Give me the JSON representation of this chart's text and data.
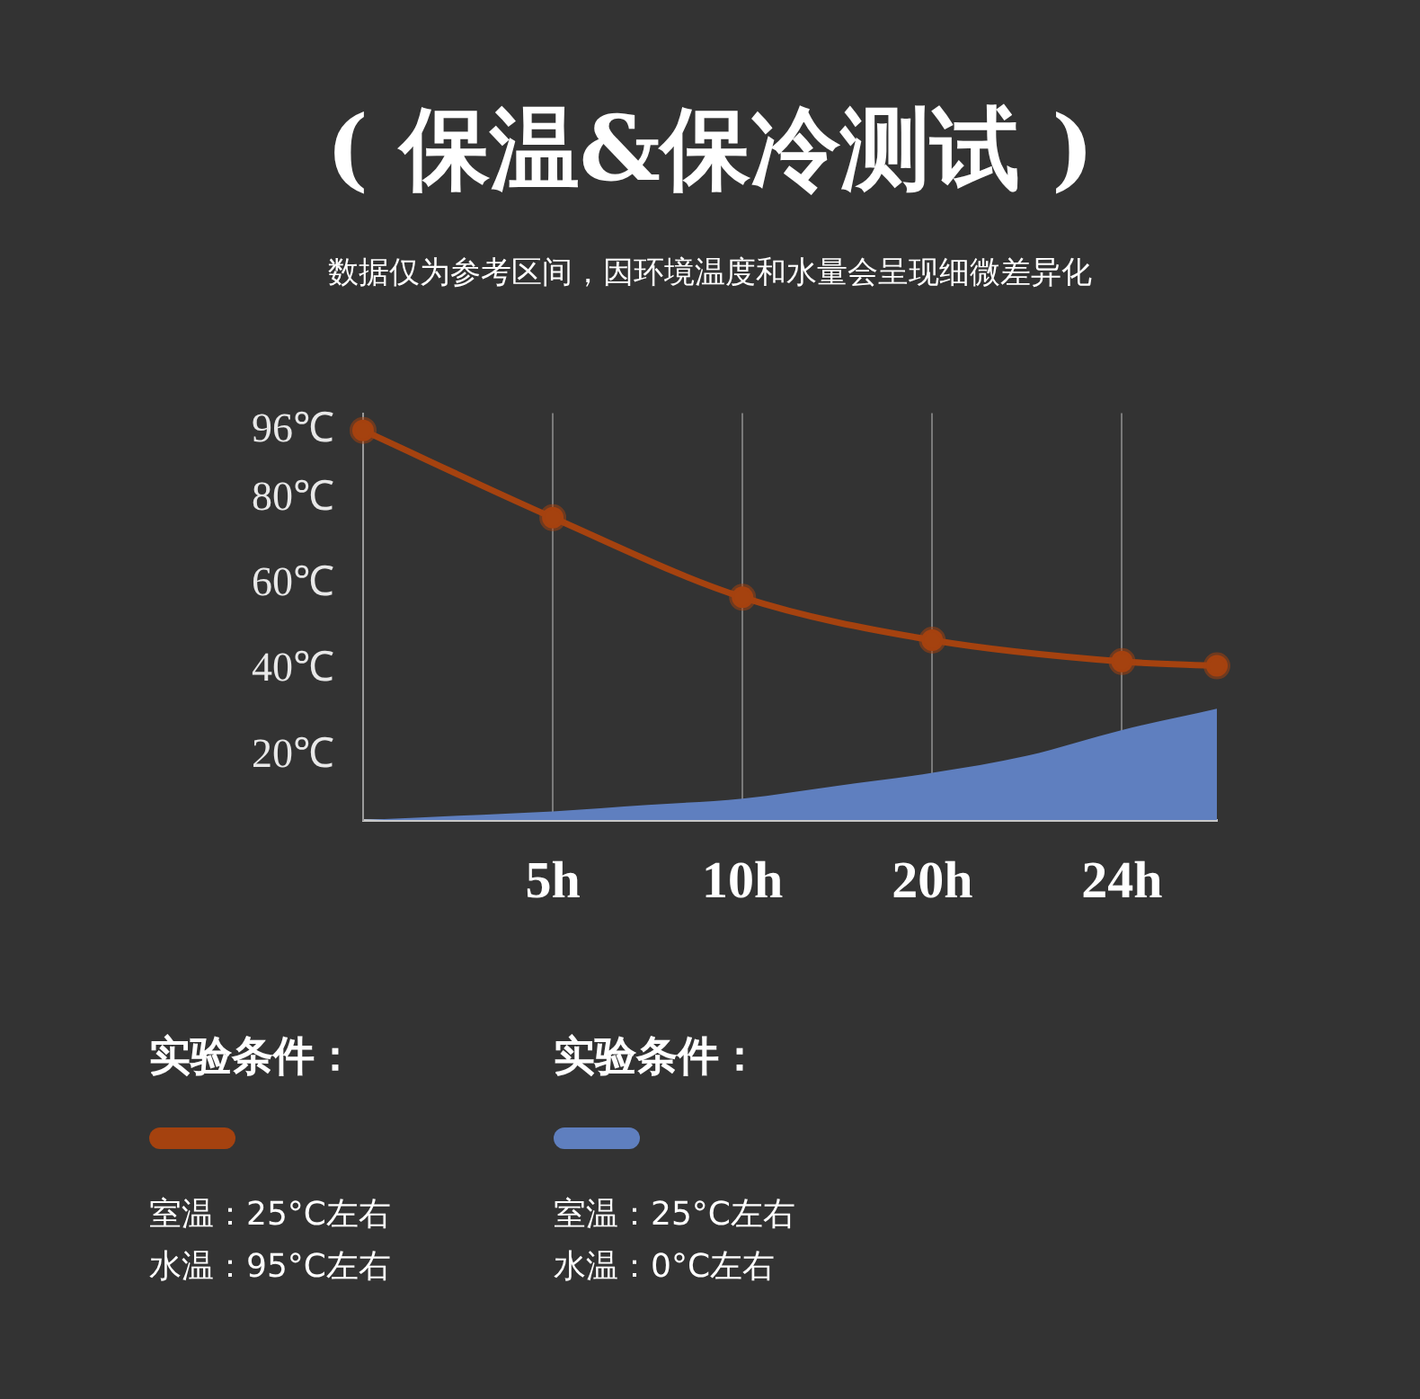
{
  "chart_data": {
    "type": "line",
    "title": "( 保温&保冷测试 )",
    "subtitle": "数据仅为参考区间，因环境温度和水量会呈现细微差异化",
    "categories": [
      null,
      null,
      "5h",
      null,
      "10h",
      null,
      "20h",
      null,
      "24h",
      null
    ],
    "series": [
      {
        "color": "#a5420f",
        "marker": "circle",
        "values": [
          96,
          null,
          75.6,
          null,
          57,
          null,
          47,
          null,
          42,
          41
        ]
      },
      {
        "type": "area",
        "color": "#5f7fbf",
        "values": [
          5,
          6,
          7,
          8.5,
          10,
          13,
          16,
          20,
          26,
          31
        ]
      }
    ],
    "ylim": [
      5,
      100
    ],
    "yticks": [
      {
        "value": 20,
        "label": "20℃"
      },
      {
        "value": 40,
        "label": "40℃"
      },
      {
        "value": 60,
        "label": "60℃"
      },
      {
        "value": 80,
        "label": "80℃"
      },
      {
        "value": 96,
        "label": "96℃"
      }
    ],
    "grid": "x",
    "line_style": "solid",
    "annotations": [
      "实验条件：",
      "室温：25°C左右",
      "水温：95°C左右",
      "实验条件：",
      "室温：25°C左右",
      "水温：0°C左右"
    ]
  }
}
